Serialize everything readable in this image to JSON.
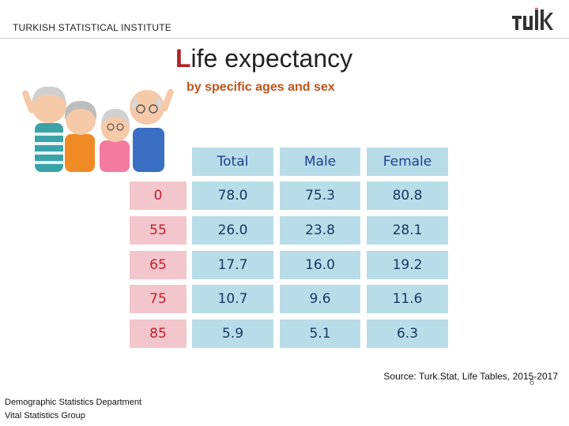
{
  "header": {
    "org": "TURKISH STATISTICAL INSTITUTE",
    "logo_text": "TÜIK"
  },
  "title": {
    "first_letter": "L",
    "rest": "ife expectancy"
  },
  "subtitle": "by specific ages and sex",
  "table": {
    "columns": [
      "Total",
      "Male",
      "Female"
    ],
    "rows": [
      {
        "age": "0",
        "total": "78.0",
        "male": "75.3",
        "female": "80.8"
      },
      {
        "age": "55",
        "total": "26.0",
        "male": "23.8",
        "female": "28.1"
      },
      {
        "age": "65",
        "total": "17.7",
        "male": "16.0",
        "female": "19.2"
      },
      {
        "age": "75",
        "total": "10.7",
        "male": "9.6",
        "female": "11.6"
      },
      {
        "age": "85",
        "total": "5.9",
        "male": "5.1",
        "female": "6.3"
      }
    ]
  },
  "source": "Source: Turk.Stat, Life Tables, 2015-2017",
  "footer": {
    "line1": "Demographic Statistics Department",
    "line2": "Vital Statistics Group"
  },
  "page_number": "6",
  "colors": {
    "header_cell": "#b8dce8",
    "age_cell": "#f2c6cc",
    "accent": "#b22222",
    "subtitle": "#c0521a"
  }
}
